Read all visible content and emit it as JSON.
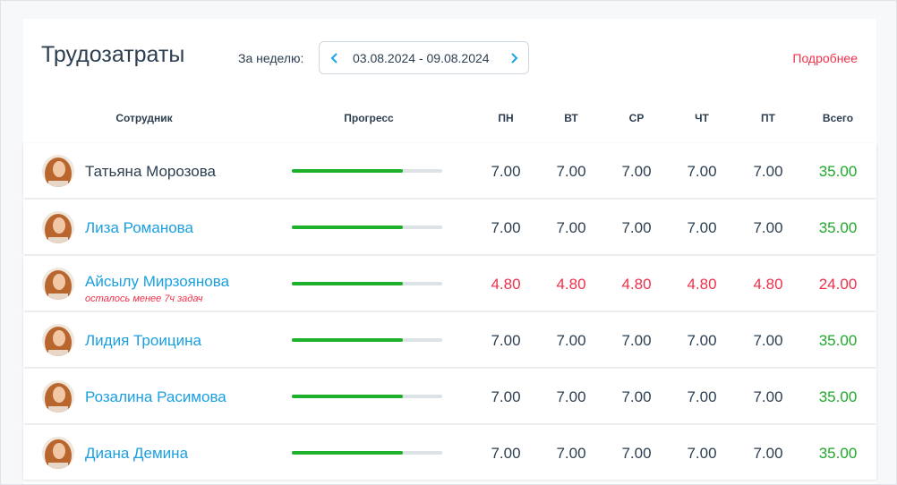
{
  "header": {
    "title": "Трудозатраты",
    "week_label": "За неделю:",
    "date_range": "03.08.2024 - 09.08.2024",
    "details_link": "Подробнее"
  },
  "table": {
    "columns": [
      "Сотрудник",
      "Прогресс",
      "ПН",
      "ВТ",
      "СР",
      "ЧТ",
      "ПТ",
      "Всего"
    ],
    "rows": [
      {
        "name": "Татьяна Морозова",
        "name_color": "#2c3e50",
        "value_color": "#2c3e50",
        "total_color": "#1fa82a",
        "progress": 74,
        "days": [
          "7.00",
          "7.00",
          "7.00",
          "7.00",
          "7.00"
        ],
        "total": "35.00"
      },
      {
        "name": "Лиза Романова",
        "name_color": "#1a9fe0",
        "value_color": "#2c3e50",
        "total_color": "#1fa82a",
        "progress": 74,
        "days": [
          "7.00",
          "7.00",
          "7.00",
          "7.00",
          "7.00"
        ],
        "total": "35.00"
      },
      {
        "name": "Айсылу Мирзоянова",
        "note": "осталось менее 7ч задач",
        "name_color": "#1a9fe0",
        "value_color": "#f0304a",
        "total_color": "#f0304a",
        "progress": 74,
        "days": [
          "4.80",
          "4.80",
          "4.80",
          "4.80",
          "4.80"
        ],
        "total": "24.00"
      },
      {
        "name": "Лидия Троицина",
        "name_color": "#1a9fe0",
        "value_color": "#2c3e50",
        "total_color": "#1fa82a",
        "progress": 74,
        "days": [
          "7.00",
          "7.00",
          "7.00",
          "7.00",
          "7.00"
        ],
        "total": "35.00"
      },
      {
        "name": "Розалина Расимова",
        "name_color": "#1a9fe0",
        "value_color": "#2c3e50",
        "total_color": "#1fa82a",
        "progress": 74,
        "days": [
          "7.00",
          "7.00",
          "7.00",
          "7.00",
          "7.00"
        ],
        "total": "35.00"
      },
      {
        "name": "Диана Демина",
        "name_color": "#1a9fe0",
        "value_color": "#2c3e50",
        "total_color": "#1fa82a",
        "progress": 74,
        "days": [
          "7.00",
          "7.00",
          "7.00",
          "7.00",
          "7.00"
        ],
        "total": "35.00"
      }
    ]
  }
}
